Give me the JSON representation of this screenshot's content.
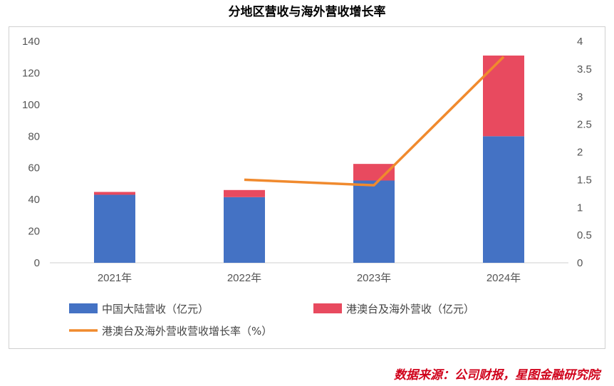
{
  "title": "分地区营收与海外营收增长率",
  "source": "数据来源：公司财报，星图金融研究院",
  "chart_data": {
    "type": "bar",
    "stacked": true,
    "categories": [
      "2021年",
      "2022年",
      "2023年",
      "2024年"
    ],
    "series": [
      {
        "name": "中国大陆营收（亿元）",
        "type": "bar",
        "axis": "left",
        "color": "#4472C4",
        "values": [
          43,
          41.5,
          52,
          80
        ]
      },
      {
        "name": "港澳台及海外营收（亿元）",
        "type": "bar",
        "axis": "left",
        "color": "#E84A5F",
        "values": [
          1.8,
          4.5,
          10.5,
          51
        ]
      },
      {
        "name": "港澳台及海外营收营收增长率（%）",
        "type": "line",
        "axis": "right",
        "color": "#F08A2E",
        "values": [
          null,
          1.5,
          1.4,
          3.72
        ]
      }
    ],
    "y_left": {
      "range": [
        0,
        140
      ],
      "ticks": [
        "0",
        "20",
        "40",
        "60",
        "80",
        "100",
        "120",
        "140"
      ]
    },
    "y_right": {
      "range": [
        0,
        4
      ],
      "ticks": [
        "0",
        "0.5",
        "1",
        "1.5",
        "2",
        "2.5",
        "3",
        "3.5",
        "4"
      ]
    },
    "grid": false,
    "legend_position": "bottom"
  }
}
